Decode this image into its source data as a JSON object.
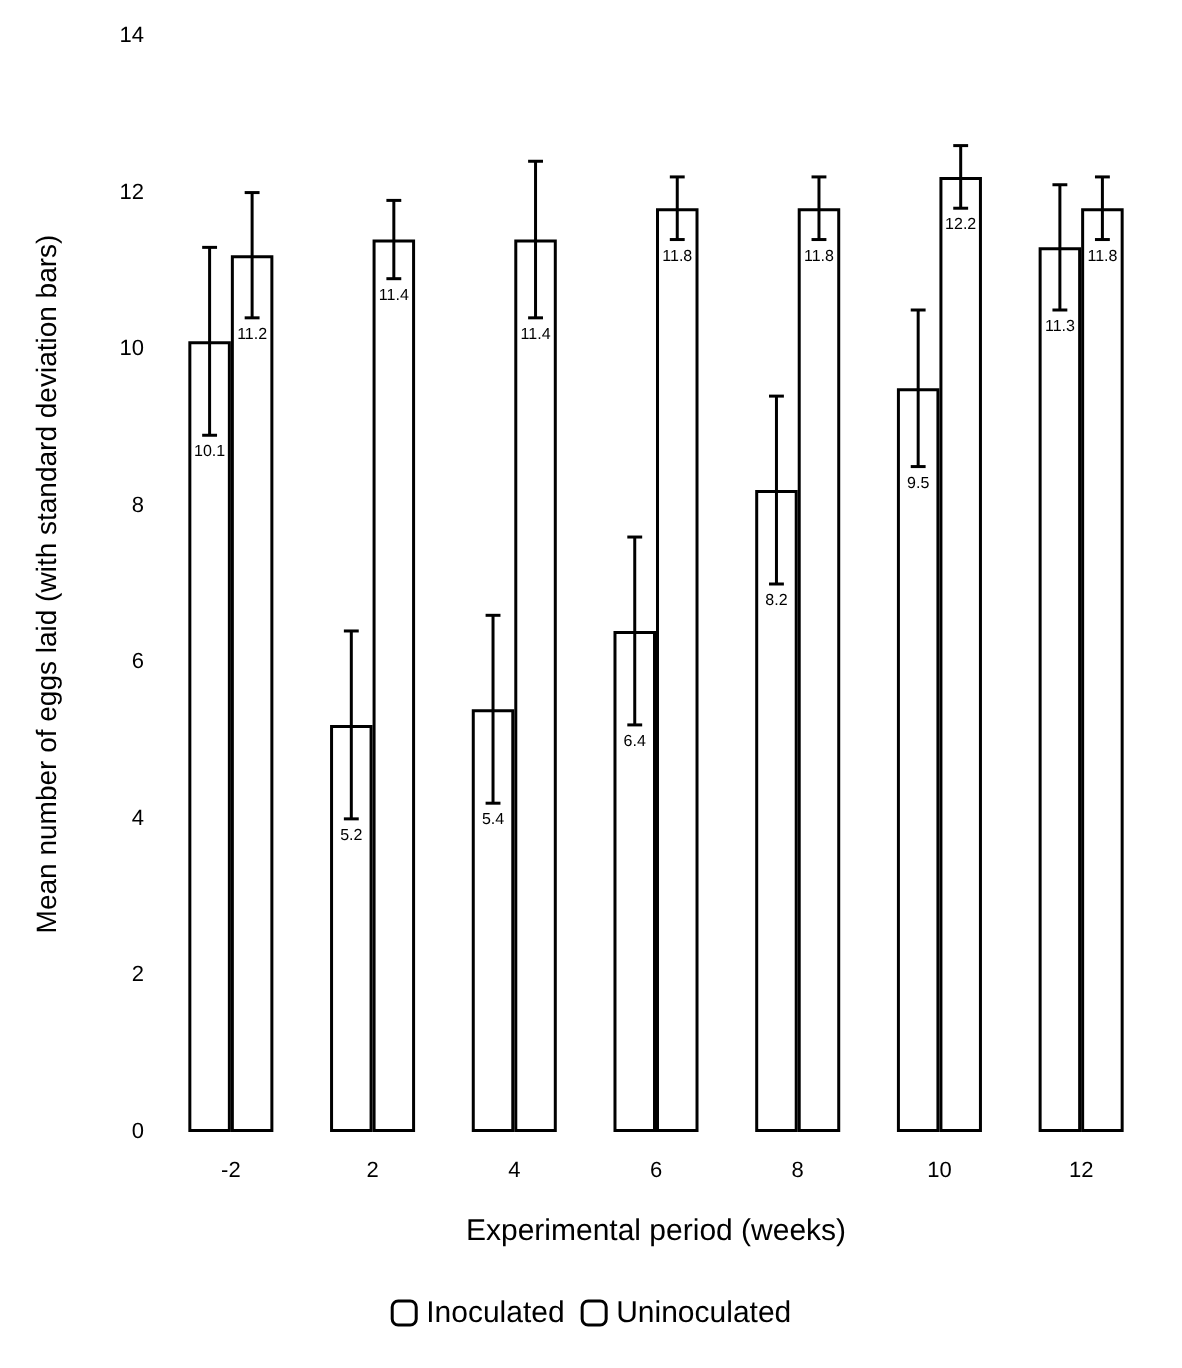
{
  "chart_data": {
    "type": "bar",
    "xlabel": "Experimental period (weeks)",
    "ylabel": "Mean number of eggs laid (with standard deviation bars)",
    "categories": [
      "-2",
      "2",
      "4",
      "6",
      "8",
      "10",
      "12"
    ],
    "series": [
      {
        "name": "Inoculated",
        "color": "#ffffff",
        "values": [
          10.1,
          5.2,
          5.4,
          6.4,
          8.2,
          9.5,
          11.3
        ],
        "errors": [
          1.2,
          1.2,
          1.2,
          1.2,
          1.2,
          1.0,
          0.8
        ]
      },
      {
        "name": "Uninoculated",
        "color": "#ffffff",
        "values": [
          11.2,
          11.4,
          11.4,
          11.8,
          11.8,
          12.2,
          11.8
        ],
        "errors": [
          0.8,
          0.5,
          1.0,
          0.4,
          0.4,
          0.4,
          0.4
        ]
      }
    ],
    "ylim": [
      0,
      14
    ],
    "yticks": [
      0,
      2,
      4,
      6,
      8,
      10,
      12,
      14
    ],
    "grid": false,
    "legend": "bottom",
    "data_labels": true
  }
}
